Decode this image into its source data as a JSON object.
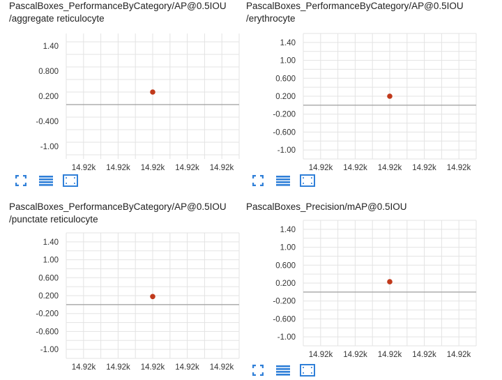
{
  "colors": {
    "point": "#c0391b",
    "grid": "#e3e3e3",
    "zero": "#9e9e9e",
    "icon": "#2f7fd8"
  },
  "toolbar": {
    "icons": [
      "fit-domain-icon",
      "toggle-log-scale-icon",
      "zoom-selection-icon"
    ]
  },
  "cards": [
    {
      "title_line1": "PascalBoxes_PerformanceByCategory/AP@0.5IOU",
      "title_line2": "/aggregate reticulocyte"
    },
    {
      "title_line1": "PascalBoxes_PerformanceByCategory/AP@0.5IOU",
      "title_line2": "/erythrocyte"
    },
    {
      "title_line1": "PascalBoxes_PerformanceByCategory/AP@0.5IOU",
      "title_line2": "/punctate reticulocyte"
    },
    {
      "title_line1": "PascalBoxes_Precision/mAP@0.5IOU",
      "title_line2": ""
    }
  ],
  "chart_data": [
    {
      "type": "scatter",
      "title": "PascalBoxes_PerformanceByCategory/AP@0.5IOU/aggregate reticulocyte",
      "x": [
        14920
      ],
      "y": [
        0.3
      ],
      "ylim": [
        -1.3,
        1.7
      ],
      "yticks": [
        1.4,
        0.8,
        0.2,
        -0.4,
        -1.0
      ],
      "ytick_labels": [
        "1.40",
        "0.800",
        "0.200",
        "-0.400",
        "-1.00"
      ],
      "xtick_labels": [
        "14.92k",
        "14.92k",
        "14.92k",
        "14.92k",
        "14.92k"
      ],
      "grid": true
    },
    {
      "type": "scatter",
      "title": "PascalBoxes_PerformanceByCategory/AP@0.5IOU/erythrocyte",
      "x": [
        14920
      ],
      "y": [
        0.2
      ],
      "ylim": [
        -1.2,
        1.6
      ],
      "yticks": [
        1.4,
        1.0,
        0.6,
        0.2,
        -0.2,
        -0.6,
        -1.0
      ],
      "ytick_labels": [
        "1.40",
        "1.00",
        "0.600",
        "0.200",
        "-0.200",
        "-0.600",
        "-1.00"
      ],
      "xtick_labels": [
        "14.92k",
        "14.92k",
        "14.92k",
        "14.92k",
        "14.92k"
      ],
      "grid": true
    },
    {
      "type": "scatter",
      "title": "PascalBoxes_PerformanceByCategory/AP@0.5IOU/punctate reticulocyte",
      "x": [
        14920
      ],
      "y": [
        0.18
      ],
      "ylim": [
        -1.2,
        1.6
      ],
      "yticks": [
        1.4,
        1.0,
        0.6,
        0.2,
        -0.2,
        -0.6,
        -1.0
      ],
      "ytick_labels": [
        "1.40",
        "1.00",
        "0.600",
        "0.200",
        "-0.200",
        "-0.600",
        "-1.00"
      ],
      "xtick_labels": [
        "14.92k",
        "14.92k",
        "14.92k",
        "14.92k",
        "14.92k"
      ],
      "grid": true
    },
    {
      "type": "scatter",
      "title": "PascalBoxes_Precision/mAP@0.5IOU",
      "x": [
        14920
      ],
      "y": [
        0.23
      ],
      "ylim": [
        -1.2,
        1.6
      ],
      "yticks": [
        1.4,
        1.0,
        0.6,
        0.2,
        -0.2,
        -0.6,
        -1.0
      ],
      "ytick_labels": [
        "1.40",
        "1.00",
        "0.600",
        "0.200",
        "-0.200",
        "-0.600",
        "-1.00"
      ],
      "xtick_labels": [
        "14.92k",
        "14.92k",
        "14.92k",
        "14.92k",
        "14.92k"
      ],
      "grid": true
    }
  ]
}
